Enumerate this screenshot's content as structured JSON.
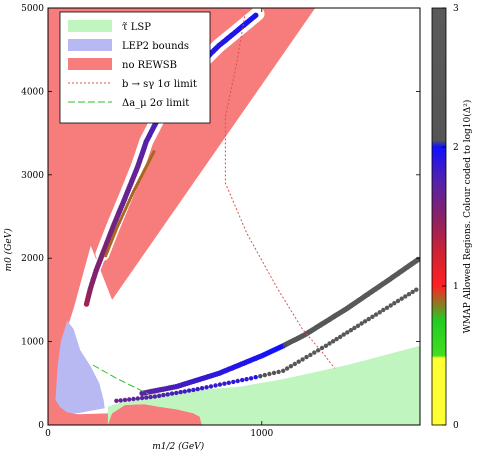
{
  "chart_data": {
    "type": "scatter",
    "title": "",
    "xlabel": "m1/2 (GeV)",
    "ylabel": "m0 (GeV)",
    "xlim": [
      0,
      1740
    ],
    "ylim": [
      0,
      5000
    ],
    "x_ticks": [
      {
        "value": 0,
        "label": "0"
      },
      {
        "value": 1000,
        "label": "1000"
      }
    ],
    "y_ticks": [
      {
        "value": 0,
        "label": "0"
      },
      {
        "value": 1000,
        "label": "1000"
      },
      {
        "value": 2000,
        "label": "2000"
      },
      {
        "value": 3000,
        "label": "3000"
      },
      {
        "value": 4000,
        "label": "4000"
      },
      {
        "value": 5000,
        "label": "5000"
      }
    ],
    "legend": {
      "placement": "top-left",
      "entries": [
        {
          "label": "τ̃ LSP",
          "kind": "patch",
          "color": "#c0f5c0"
        },
        {
          "label": "LEP2 bounds",
          "kind": "patch",
          "color": "#b8b8f2"
        },
        {
          "label": "no REWSB",
          "kind": "patch",
          "color": "#f77c7c"
        },
        {
          "label": "b → sγ 1σ limit",
          "kind": "line",
          "color": "#e05050",
          "dash": "2,2"
        },
        {
          "label": "Δa_μ 2σ limit",
          "kind": "line",
          "color": "#2fbf2f",
          "dash": "7,3"
        }
      ]
    },
    "colorbar": {
      "label": "WMAP Allowed Regions. Colour coded to log10(Δ²)",
      "ticks": [
        {
          "value": 0,
          "label": "0"
        },
        {
          "value": 1,
          "label": "1"
        },
        {
          "value": 2,
          "label": "2"
        },
        {
          "value": 3,
          "label": "3"
        }
      ],
      "gradient": [
        {
          "value": 0.0,
          "color": "#ffff33"
        },
        {
          "value": 0.48,
          "color": "#ffff33"
        },
        {
          "value": 0.5,
          "color": "#44dd22"
        },
        {
          "value": 0.75,
          "color": "#22cc22"
        },
        {
          "value": 1.0,
          "color": "#ff2222"
        },
        {
          "value": 1.25,
          "color": "#cc2233"
        },
        {
          "value": 1.5,
          "color": "#882266"
        },
        {
          "value": 1.75,
          "color": "#5522aa"
        },
        {
          "value": 2.0,
          "color": "#1010ff"
        },
        {
          "value": 2.05,
          "color": "#555555"
        },
        {
          "value": 3.0,
          "color": "#5a5a5a"
        }
      ]
    },
    "regions": [
      {
        "name": "no REWSB",
        "color": "#f77c7c",
        "polygon": [
          [
            0,
            0
          ],
          [
            0,
            5000
          ],
          [
            1250,
            5000
          ],
          [
            300,
            1500
          ],
          [
            200,
            2150
          ],
          [
            120,
            1400
          ],
          [
            70,
            1000
          ],
          [
            55,
            220
          ],
          [
            90,
            160
          ],
          [
            140,
            130
          ],
          [
            300,
            140
          ],
          [
            360,
            240
          ],
          [
            450,
            250
          ],
          [
            520,
            220
          ],
          [
            600,
            190
          ],
          [
            680,
            140
          ],
          [
            710,
            100
          ],
          [
            720,
            0
          ]
        ]
      },
      {
        "name": "τ̃ LSP",
        "color": "#c0f5c0",
        "polygon": [
          [
            280,
            0
          ],
          [
            280,
            220
          ],
          [
            360,
            290
          ],
          [
            500,
            380
          ],
          [
            700,
            420
          ],
          [
            900,
            460
          ],
          [
            1100,
            550
          ],
          [
            1400,
            720
          ],
          [
            1740,
            950
          ],
          [
            1740,
            0
          ],
          [
            720,
            0
          ],
          [
            710,
            100
          ],
          [
            680,
            140
          ],
          [
            600,
            190
          ],
          [
            520,
            220
          ],
          [
            450,
            250
          ],
          [
            360,
            240
          ],
          [
            300,
            140
          ]
        ]
      },
      {
        "name": "LEP2 bounds",
        "color": "#b8b8f2",
        "polygon": [
          [
            35,
            300
          ],
          [
            45,
            700
          ],
          [
            60,
            1000
          ],
          [
            90,
            1250
          ],
          [
            120,
            1150
          ],
          [
            150,
            900
          ],
          [
            200,
            700
          ],
          [
            240,
            500
          ],
          [
            260,
            300
          ],
          [
            265,
            200
          ],
          [
            200,
            170
          ],
          [
            140,
            140
          ],
          [
            90,
            150
          ],
          [
            55,
            220
          ]
        ]
      }
    ],
    "limits": [
      {
        "name": "b → sγ 1σ limit",
        "color": "#e05050",
        "dash": "2,2",
        "points": [
          [
            920,
            4900
          ],
          [
            880,
            4300
          ],
          [
            830,
            3700
          ],
          [
            830,
            2900
          ],
          [
            930,
            2300
          ],
          [
            1070,
            1650
          ],
          [
            1190,
            1150
          ],
          [
            1290,
            850
          ],
          [
            1340,
            680
          ]
        ]
      },
      {
        "name": "Δa_μ 2σ limit",
        "color": "#2fbf2f",
        "dash": "7,3",
        "points": [
          [
            210,
            720
          ],
          [
            320,
            560
          ],
          [
            470,
            370
          ]
        ]
      }
    ],
    "series": [
      {
        "kind": "band",
        "thickness": 2.7,
        "points": [
          {
            "x": 255,
            "y": 2050,
            "c": 1.55
          },
          {
            "x": 305,
            "y": 2380,
            "c": 1.6
          },
          {
            "x": 360,
            "y": 2720,
            "c": 1.65
          },
          {
            "x": 420,
            "y": 3100,
            "c": 1.68
          },
          {
            "x": 460,
            "y": 3400,
            "c": 1.75
          },
          {
            "x": 520,
            "y": 3700,
            "c": 1.8
          },
          {
            "x": 600,
            "y": 4000,
            "c": 1.85
          },
          {
            "x": 700,
            "y": 4300,
            "c": 1.88
          },
          {
            "x": 800,
            "y": 4550,
            "c": 1.92
          },
          {
            "x": 900,
            "y": 4760,
            "c": 1.95
          },
          {
            "x": 980,
            "y": 4930,
            "c": 1.97
          }
        ]
      },
      {
        "kind": "band",
        "thickness": 2.7,
        "points": [
          {
            "x": 180,
            "y": 1450,
            "c": 1.4
          },
          {
            "x": 200,
            "y": 1650,
            "c": 1.5
          },
          {
            "x": 225,
            "y": 1850,
            "c": 1.55
          },
          {
            "x": 255,
            "y": 2050,
            "c": 1.55
          }
        ]
      },
      {
        "kind": "band",
        "thickness": 2.7,
        "points": [
          {
            "x": 440,
            "y": 380,
            "c": 1.7
          },
          {
            "x": 600,
            "y": 460,
            "c": 1.8
          },
          {
            "x": 800,
            "y": 620,
            "c": 1.9
          },
          {
            "x": 1000,
            "y": 830,
            "c": 1.97
          },
          {
            "x": 1100,
            "y": 950,
            "c": 2.0
          },
          {
            "x": 1200,
            "y": 1080,
            "c": 2.4
          },
          {
            "x": 1400,
            "y": 1400,
            "c": 2.6
          },
          {
            "x": 1600,
            "y": 1750,
            "c": 2.8
          },
          {
            "x": 1740,
            "y": 2000,
            "c": 2.9
          }
        ]
      },
      {
        "kind": "dots",
        "thickness": 2.2,
        "points": [
          {
            "x": 320,
            "y": 290,
            "c": 1.65
          },
          {
            "x": 500,
            "y": 340,
            "c": 1.75
          },
          {
            "x": 700,
            "y": 430,
            "c": 1.85
          },
          {
            "x": 950,
            "y": 560,
            "c": 1.9
          },
          {
            "x": 1100,
            "y": 650,
            "c": 2.4
          },
          {
            "x": 1300,
            "y": 950,
            "c": 2.6
          },
          {
            "x": 1500,
            "y": 1270,
            "c": 2.7
          },
          {
            "x": 1740,
            "y": 1650,
            "c": 2.8
          }
        ]
      },
      {
        "kind": "band",
        "thickness": 1.6,
        "points": [
          {
            "x": 270,
            "y": 2030,
            "c": 0.9
          },
          {
            "x": 320,
            "y": 2350,
            "c": 0.9
          },
          {
            "x": 400,
            "y": 2800,
            "c": 0.9
          },
          {
            "x": 500,
            "y": 3300,
            "c": 0.9
          }
        ]
      }
    ]
  }
}
